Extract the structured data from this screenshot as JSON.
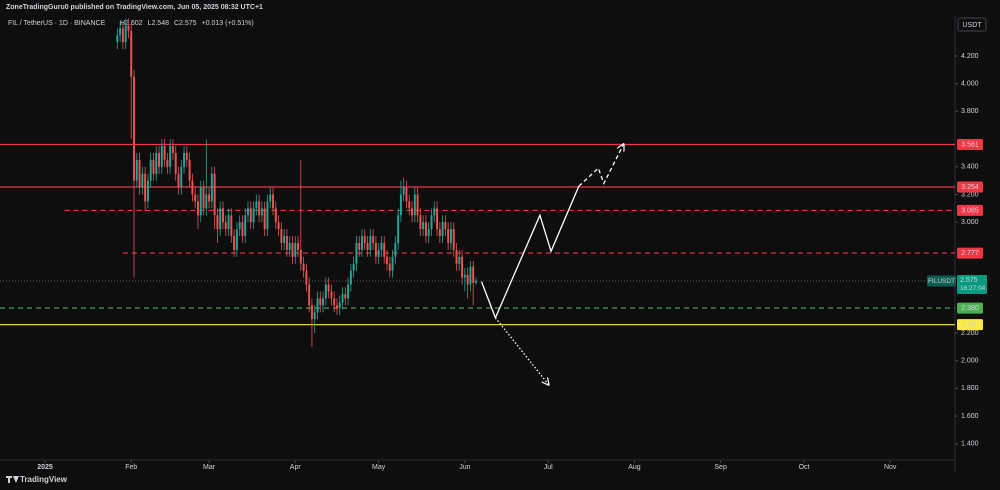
{
  "chart_data": {
    "type": "candlestick",
    "publisher": "ZoneTradingGuru0 published on TradingView.com, Jun 05, 2025 08:32 UTC+1",
    "title": "FIL / TetherUS · 1D · BINANCE",
    "quote": [
      "H2.602",
      "L2.548",
      "C2.575",
      "+0.013 (+0.51%)"
    ],
    "currency": "USDT",
    "brand": "TradingView",
    "up_color": "#26a69a",
    "down_color": "#ef5350",
    "xlim": [
      -16.2,
      327.3
    ],
    "ylim": [
      1.283,
      4.496
    ],
    "xticks": [
      {
        "value": 0,
        "label": "2025"
      },
      {
        "value": 31,
        "label": "Feb"
      },
      {
        "value": 59,
        "label": "Mar"
      },
      {
        "value": 90,
        "label": "Apr"
      },
      {
        "value": 120,
        "label": "May"
      },
      {
        "value": 151,
        "label": "Jun"
      },
      {
        "value": 181,
        "label": "Jul"
      },
      {
        "value": 212,
        "label": "Aug"
      },
      {
        "value": 243,
        "label": "Sep"
      },
      {
        "value": 273,
        "label": "Oct"
      },
      {
        "value": 304,
        "label": "Nov"
      }
    ],
    "yticks": [
      {
        "value": 1.4,
        "label": "1.400"
      },
      {
        "value": 1.6,
        "label": "1.600"
      },
      {
        "value": 1.8,
        "label": "1.800"
      },
      {
        "value": 2.0,
        "label": "2.000"
      },
      {
        "value": 2.2,
        "label": "2.200"
      },
      {
        "value": 3.0,
        "label": "3.000"
      },
      {
        "value": 3.2,
        "label": "3.200"
      },
      {
        "value": 3.4,
        "label": "3.400"
      },
      {
        "value": 3.8,
        "label": "3.800"
      },
      {
        "value": 4.0,
        "label": "4.000"
      },
      {
        "value": 4.2,
        "label": "4.200"
      }
    ],
    "x": [
      26,
      27,
      28,
      29,
      30,
      31,
      32,
      33,
      34,
      35,
      36,
      37,
      38,
      39,
      40,
      41,
      42,
      43,
      44,
      45,
      46,
      47,
      48,
      49,
      50,
      51,
      52,
      53,
      54,
      55,
      56,
      57,
      58,
      59,
      60,
      61,
      62,
      63,
      64,
      65,
      66,
      67,
      68,
      69,
      70,
      71,
      72,
      73,
      74,
      75,
      76,
      77,
      78,
      79,
      80,
      81,
      82,
      83,
      84,
      85,
      86,
      87,
      88,
      89,
      90,
      91,
      92,
      93,
      94,
      95,
      96,
      97,
      98,
      99,
      100,
      101,
      102,
      103,
      104,
      105,
      106,
      107,
      108,
      109,
      110,
      111,
      112,
      113,
      114,
      115,
      116,
      117,
      118,
      119,
      120,
      121,
      122,
      123,
      124,
      125,
      126,
      127,
      128,
      129,
      130,
      131,
      132,
      133,
      134,
      135,
      136,
      137,
      138,
      139,
      140,
      141,
      142,
      143,
      144,
      145,
      146,
      147,
      148,
      149,
      150,
      151,
      152,
      153,
      154,
      155
    ],
    "ohlc": [
      [
        4.3,
        4.4,
        4.25,
        4.35
      ],
      [
        4.35,
        4.45,
        4.3,
        4.4
      ],
      [
        4.4,
        4.45,
        4.25,
        4.3
      ],
      [
        4.3,
        4.47,
        4.25,
        4.42
      ],
      [
        4.42,
        4.47,
        4.33,
        4.38
      ],
      [
        4.38,
        4.43,
        3.6,
        4.05
      ],
      [
        4.05,
        4.1,
        2.6,
        3.3
      ],
      [
        3.3,
        3.5,
        3.25,
        3.45
      ],
      [
        3.45,
        3.5,
        3.2,
        3.25
      ],
      [
        3.25,
        3.4,
        3.2,
        3.35
      ],
      [
        3.35,
        3.4,
        3.08,
        3.15
      ],
      [
        3.15,
        3.35,
        3.1,
        3.3
      ],
      [
        3.3,
        3.5,
        3.25,
        3.45
      ],
      [
        3.45,
        3.5,
        3.3,
        3.35
      ],
      [
        3.35,
        3.55,
        3.3,
        3.5
      ],
      [
        3.5,
        3.55,
        3.35,
        3.4
      ],
      [
        3.4,
        3.6,
        3.35,
        3.55
      ],
      [
        3.55,
        3.6,
        3.4,
        3.45
      ],
      [
        3.45,
        3.5,
        3.35,
        3.4
      ],
      [
        3.4,
        3.6,
        3.35,
        3.55
      ],
      [
        3.55,
        3.6,
        3.45,
        3.5
      ],
      [
        3.5,
        3.55,
        3.3,
        3.35
      ],
      [
        3.35,
        3.4,
        3.2,
        3.25
      ],
      [
        3.25,
        3.45,
        3.2,
        3.4
      ],
      [
        3.4,
        3.55,
        3.35,
        3.5
      ],
      [
        3.5,
        3.55,
        3.4,
        3.45
      ],
      [
        3.45,
        3.5,
        3.25,
        3.3
      ],
      [
        3.3,
        3.35,
        3.15,
        3.2
      ],
      [
        3.2,
        3.25,
        3.1,
        3.15
      ],
      [
        3.15,
        3.2,
        2.95,
        3.05
      ],
      [
        3.05,
        3.3,
        3.0,
        3.25
      ],
      [
        3.25,
        3.3,
        3.05,
        3.1
      ],
      [
        3.1,
        3.6,
        3.05,
        3.2
      ],
      [
        3.2,
        3.25,
        3.1,
        3.15
      ],
      [
        3.15,
        3.4,
        3.1,
        3.35
      ],
      [
        3.35,
        3.4,
        2.95,
        3.05
      ],
      [
        3.05,
        3.1,
        2.85,
        2.95
      ],
      [
        2.95,
        3.15,
        2.9,
        3.1
      ],
      [
        3.1,
        3.15,
        2.95,
        3.0
      ],
      [
        3.0,
        3.05,
        2.9,
        2.95
      ],
      [
        2.95,
        3.1,
        2.9,
        3.05
      ],
      [
        3.05,
        3.1,
        2.85,
        2.9
      ],
      [
        2.9,
        2.95,
        2.75,
        2.8
      ],
      [
        2.8,
        3.0,
        2.75,
        2.95
      ],
      [
        2.95,
        3.05,
        2.9,
        3.0
      ],
      [
        3.0,
        3.05,
        2.85,
        2.9
      ],
      [
        2.9,
        3.1,
        2.85,
        3.05
      ],
      [
        3.05,
        3.15,
        3.0,
        3.1
      ],
      [
        3.1,
        3.15,
        2.95,
        3.0
      ],
      [
        3.0,
        3.15,
        2.95,
        3.1
      ],
      [
        3.1,
        3.2,
        3.05,
        3.15
      ],
      [
        3.15,
        3.2,
        3.0,
        3.05
      ],
      [
        3.05,
        3.15,
        3.0,
        3.1
      ],
      [
        3.1,
        3.15,
        2.9,
        2.95
      ],
      [
        2.95,
        3.2,
        2.9,
        3.15
      ],
      [
        3.15,
        3.25,
        3.1,
        3.2
      ],
      [
        3.2,
        3.25,
        3.05,
        3.1
      ],
      [
        3.1,
        3.15,
        2.95,
        3.0
      ],
      [
        3.0,
        3.05,
        2.9,
        2.95
      ],
      [
        2.95,
        3.0,
        2.8,
        2.85
      ],
      [
        2.85,
        2.95,
        2.8,
        2.9
      ],
      [
        2.9,
        2.95,
        2.75,
        2.8
      ],
      [
        2.8,
        2.9,
        2.75,
        2.85
      ],
      [
        2.85,
        2.9,
        2.7,
        2.75
      ],
      [
        2.75,
        2.9,
        2.7,
        2.85
      ],
      [
        2.85,
        2.9,
        2.75,
        2.8
      ],
      [
        2.8,
        3.45,
        2.65,
        2.7
      ],
      [
        2.7,
        2.75,
        2.6,
        2.65
      ],
      [
        2.65,
        2.7,
        2.5,
        2.55
      ],
      [
        2.55,
        2.6,
        2.35,
        2.4
      ],
      [
        2.4,
        2.45,
        2.1,
        2.3
      ],
      [
        2.3,
        2.4,
        2.2,
        2.35
      ],
      [
        2.35,
        2.5,
        2.3,
        2.45
      ],
      [
        2.45,
        2.5,
        2.35,
        2.4
      ],
      [
        2.4,
        2.5,
        2.35,
        2.45
      ],
      [
        2.45,
        2.6,
        2.4,
        2.55
      ],
      [
        2.55,
        2.6,
        2.45,
        2.5
      ],
      [
        2.5,
        2.55,
        2.4,
        2.45
      ],
      [
        2.45,
        2.5,
        2.35,
        2.4
      ],
      [
        2.4,
        2.45,
        2.33,
        2.38
      ],
      [
        2.38,
        2.47,
        2.33,
        2.42
      ],
      [
        2.42,
        2.53,
        2.37,
        2.48
      ],
      [
        2.48,
        2.53,
        2.4,
        2.45
      ],
      [
        2.45,
        2.6,
        2.4,
        2.55
      ],
      [
        2.55,
        2.7,
        2.5,
        2.65
      ],
      [
        2.65,
        2.75,
        2.6,
        2.7
      ],
      [
        2.7,
        2.9,
        2.65,
        2.85
      ],
      [
        2.85,
        2.9,
        2.75,
        2.8
      ],
      [
        2.8,
        2.95,
        2.75,
        2.9
      ],
      [
        2.9,
        2.95,
        2.8,
        2.85
      ],
      [
        2.85,
        2.9,
        2.75,
        2.8
      ],
      [
        2.8,
        2.95,
        2.75,
        2.9
      ],
      [
        2.9,
        2.95,
        2.8,
        2.85
      ],
      [
        2.85,
        2.9,
        2.7,
        2.75
      ],
      [
        2.75,
        2.85,
        2.7,
        2.8
      ],
      [
        2.8,
        2.9,
        2.75,
        2.85
      ],
      [
        2.85,
        2.9,
        2.7,
        2.75
      ],
      [
        2.75,
        2.8,
        2.65,
        2.7
      ],
      [
        2.7,
        2.75,
        2.6,
        2.65
      ],
      [
        2.65,
        2.8,
        2.6,
        2.75
      ],
      [
        2.75,
        2.9,
        2.7,
        2.85
      ],
      [
        2.85,
        3.1,
        2.8,
        3.05
      ],
      [
        3.05,
        3.3,
        3.0,
        3.2
      ],
      [
        3.2,
        3.32,
        3.15,
        3.25
      ],
      [
        3.25,
        3.3,
        3.1,
        3.15
      ],
      [
        3.15,
        3.2,
        3.05,
        3.1
      ],
      [
        3.1,
        3.15,
        3.0,
        3.05
      ],
      [
        3.05,
        3.25,
        3.0,
        3.2
      ],
      [
        3.2,
        3.25,
        3.0,
        3.05
      ],
      [
        3.05,
        3.1,
        2.9,
        2.95
      ],
      [
        2.95,
        3.05,
        2.9,
        3.0
      ],
      [
        3.0,
        3.05,
        2.85,
        2.9
      ],
      [
        2.9,
        3.0,
        2.85,
        2.95
      ],
      [
        2.95,
        3.1,
        2.9,
        3.05
      ],
      [
        3.05,
        3.15,
        3.0,
        3.1
      ],
      [
        3.1,
        3.15,
        2.9,
        2.95
      ],
      [
        2.95,
        3.0,
        2.85,
        2.9
      ],
      [
        2.9,
        3.05,
        2.85,
        3.0
      ],
      [
        3.0,
        3.05,
        2.9,
        2.95
      ],
      [
        2.95,
        3.0,
        2.8,
        2.85
      ],
      [
        2.85,
        3.0,
        2.8,
        2.95
      ],
      [
        2.95,
        3.0,
        2.75,
        2.8
      ],
      [
        2.8,
        2.85,
        2.65,
        2.7
      ],
      [
        2.7,
        2.8,
        2.65,
        2.75
      ],
      [
        2.75,
        2.8,
        2.55,
        2.6
      ],
      [
        2.6,
        2.67,
        2.5,
        2.62
      ],
      [
        2.62,
        2.67,
        2.45,
        2.55
      ],
      [
        2.55,
        2.72,
        2.5,
        2.68
      ],
      [
        2.68,
        2.72,
        2.4,
        2.562
      ],
      [
        2.562,
        2.602,
        2.548,
        2.575
      ]
    ],
    "levels": [
      {
        "value": 3.561,
        "label": "3.561",
        "color": "#f23645",
        "style": "solid",
        "from": -16.2
      },
      {
        "value": 3.254,
        "label": "3.254",
        "color": "#f23645",
        "style": "solid",
        "from": -16.2
      },
      {
        "value": 3.085,
        "label": "3.085",
        "color": "#f23645",
        "style": "dashed",
        "from": 7
      },
      {
        "value": 2.777,
        "label": "2.777",
        "color": "#f23645",
        "style": "dashed",
        "from": 28
      },
      {
        "value": 2.38,
        "label": "2.380",
        "color": "#4caf50",
        "style": "dashed",
        "from": -16.2
      },
      {
        "value": 2.26,
        "label": "2.260",
        "color": "#ffeb3b",
        "style": "solid",
        "from": -16.2
      }
    ],
    "last_price": {
      "value": 2.575,
      "label": "2.575",
      "symbol": "FILUSDT",
      "countdown": "16:27:04",
      "color": "#089981"
    },
    "projection": {
      "x": [
        157,
        162,
        178,
        182,
        192
      ],
      "y": [
        2.57,
        2.31,
        3.05,
        2.79,
        3.26
      ]
    },
    "projection_dashed": {
      "x": [
        192,
        199,
        201,
        208
      ],
      "y": [
        3.26,
        3.39,
        3.28,
        3.56
      ]
    },
    "projection_down": {
      "x": [
        162,
        181
      ],
      "y": [
        2.31,
        1.83
      ]
    }
  }
}
